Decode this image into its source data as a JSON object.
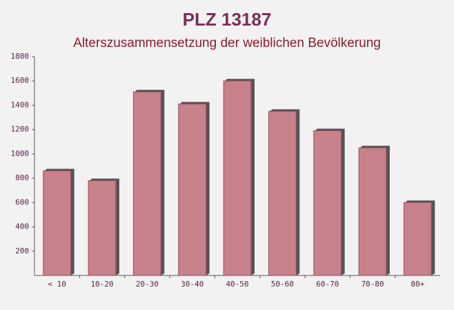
{
  "chart_data": {
    "type": "bar",
    "title": "PLZ 13187",
    "subtitle": "Alterszusammensetzung der weiblichen Bevölkerung",
    "categories": [
      "< 10",
      "10-20",
      "20-30",
      "30-40",
      "40-50",
      "50-60",
      "60-70",
      "70-80",
      "80+"
    ],
    "values": [
      860,
      780,
      1510,
      1410,
      1600,
      1350,
      1190,
      1050,
      600
    ],
    "color": "#c27480",
    "ylim": [
      0,
      1800
    ],
    "yticks": [
      200,
      400,
      600,
      800,
      1000,
      1200,
      1400,
      1600,
      1800
    ]
  }
}
